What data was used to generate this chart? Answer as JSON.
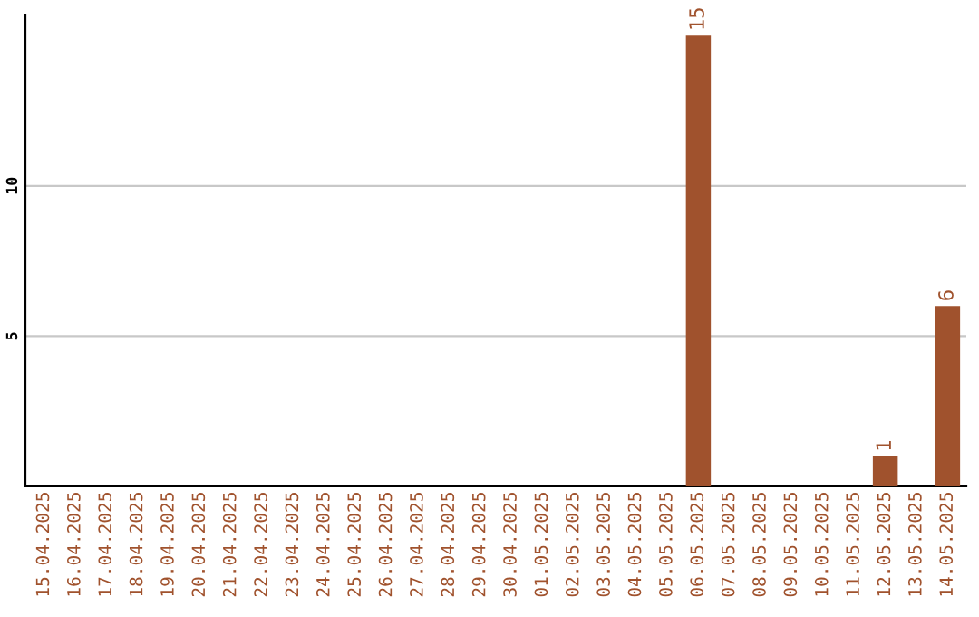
{
  "chart_data": {
    "type": "bar",
    "categories": [
      "15.04.2025",
      "16.04.2025",
      "17.04.2025",
      "18.04.2025",
      "19.04.2025",
      "20.04.2025",
      "21.04.2025",
      "22.04.2025",
      "23.04.2025",
      "24.04.2025",
      "25.04.2025",
      "26.04.2025",
      "27.04.2025",
      "28.04.2025",
      "29.04.2025",
      "30.04.2025",
      "01.05.2025",
      "02.05.2025",
      "03.05.2025",
      "04.05.2025",
      "05.05.2025",
      "06.05.2025",
      "07.05.2025",
      "08.05.2025",
      "09.05.2025",
      "10.05.2025",
      "11.05.2025",
      "12.05.2025",
      "13.05.2025",
      "14.05.2025"
    ],
    "values": [
      0,
      0,
      0,
      0,
      0,
      0,
      0,
      0,
      0,
      0,
      0,
      0,
      0,
      0,
      0,
      0,
      0,
      0,
      0,
      0,
      0,
      15,
      0,
      0,
      0,
      0,
      0,
      1,
      0,
      6
    ],
    "value_labels": [
      null,
      null,
      null,
      null,
      null,
      null,
      null,
      null,
      null,
      null,
      null,
      null,
      null,
      null,
      null,
      null,
      null,
      null,
      null,
      null,
      null,
      "15",
      null,
      null,
      null,
      null,
      null,
      "1",
      null,
      "6"
    ],
    "color": "#a0522d",
    "ylim": [
      0,
      15.7
    ],
    "yticks": [
      5,
      10
    ],
    "grid": "y"
  }
}
